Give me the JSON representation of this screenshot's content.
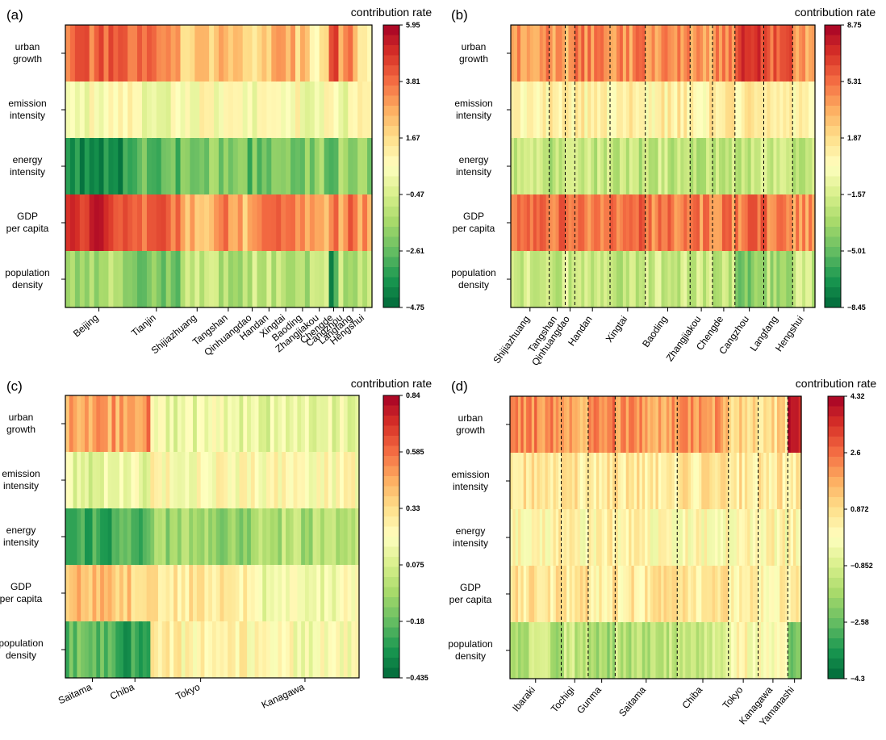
{
  "colorbar_title": "contribution rate",
  "row_labels": [
    [
      "urban",
      "growth"
    ],
    [
      "emission",
      "intensity"
    ],
    [
      "energy",
      "intensity"
    ],
    [
      "GDP",
      "per capita"
    ],
    [
      "population",
      "density"
    ]
  ],
  "chart_data": [
    {
      "panel": "(a)",
      "type": "heatmap",
      "title": "contribution rate",
      "rows": [
        "urban growth",
        "emission intensity",
        "energy intensity",
        "GDP per capita",
        "population density"
      ],
      "colorbar_ticks": [
        5.95,
        3.81,
        1.67,
        -0.47,
        -2.61,
        -4.75
      ],
      "vmin": -4.75,
      "vmax": 5.95,
      "groups": [
        {
          "name": "Beijing",
          "cols": 14,
          "values": [
            3.8,
            0.5,
            -3.8,
            4.8,
            -1.5
          ]
        },
        {
          "name": "Tianjin",
          "cols": 10,
          "values": [
            3.5,
            0.4,
            -2.8,
            3.8,
            -2.2
          ]
        },
        {
          "name": "Shijiazhuang",
          "cols": 7,
          "values": [
            2.2,
            0.6,
            -2.0,
            2.8,
            -1.0
          ]
        },
        {
          "name": "Tangshan",
          "cols": 6,
          "values": [
            2.4,
            0.5,
            -2.2,
            3.4,
            -1.2
          ]
        },
        {
          "name": "Qinhuangdao",
          "cols": 4,
          "values": [
            1.6,
            0.5,
            -2.6,
            2.6,
            -0.8
          ]
        },
        {
          "name": "Handan",
          "cols": 3,
          "values": [
            2.2,
            0.4,
            -2.3,
            3.2,
            -1.1
          ]
        },
        {
          "name": "Xingtai",
          "cols": 4,
          "values": [
            2.4,
            0.4,
            -2.2,
            3.4,
            -1.0
          ]
        },
        {
          "name": "Baoding",
          "cols": 3,
          "values": [
            2.1,
            0.5,
            -2.0,
            3.0,
            -1.2
          ]
        },
        {
          "name": "Zhangjiakou",
          "cols": 4,
          "values": [
            1.4,
            0.5,
            -2.0,
            2.4,
            -0.9
          ]
        },
        {
          "name": "Chengde",
          "cols": 2,
          "values": [
            4.5,
            0.4,
            -3.5,
            3.6,
            -3.6
          ]
        },
        {
          "name": "Cangzhou",
          "cols": 2,
          "values": [
            2.6,
            0.4,
            -1.6,
            3.0,
            -1.0
          ]
        },
        {
          "name": "Langfang",
          "cols": 2,
          "values": [
            3.2,
            0.4,
            -2.4,
            3.8,
            -1.4
          ]
        },
        {
          "name": "Hengshui",
          "cols": 3,
          "values": [
            1.5,
            0.5,
            -1.8,
            3.2,
            -0.8
          ]
        }
      ]
    },
    {
      "panel": "(b)",
      "type": "heatmap",
      "title": "contribution rate",
      "rows": [
        "urban growth",
        "emission intensity",
        "energy intensity",
        "GDP per capita",
        "population density"
      ],
      "colorbar_ticks": [
        8.75,
        5.31,
        1.87,
        -1.57,
        -5.01,
        -8.45
      ],
      "vmin": -8.45,
      "vmax": 8.75,
      "groups": [
        {
          "name": "Shijiazhuang",
          "cols": 12,
          "values": [
            4.5,
            0.9,
            -2.2,
            5.0,
            -2.0
          ]
        },
        {
          "name": "Tangshan",
          "cols": 5,
          "values": [
            4.2,
            0.8,
            -2.4,
            5.2,
            -2.3
          ]
        },
        {
          "name": "Qinhuangdao",
          "cols": 3,
          "values": [
            3.8,
            0.9,
            -2.2,
            4.8,
            -1.8
          ]
        },
        {
          "name": "Handan",
          "cols": 11,
          "values": [
            4.6,
            0.8,
            -2.3,
            5.0,
            -2.1
          ]
        },
        {
          "name": "Xingtai",
          "cols": 11,
          "values": [
            4.4,
            0.8,
            -2.5,
            5.1,
            -2.2
          ]
        },
        {
          "name": "Baoding",
          "cols": 14,
          "values": [
            4.2,
            0.9,
            -2.2,
            5.0,
            -2.0
          ]
        },
        {
          "name": "Zhangjiakou",
          "cols": 7,
          "values": [
            3.8,
            0.9,
            -2.3,
            4.6,
            -1.9
          ]
        },
        {
          "name": "Chengde",
          "cols": 7,
          "values": [
            4.2,
            0.9,
            -2.0,
            4.8,
            -2.1
          ]
        },
        {
          "name": "Cangzhou",
          "cols": 9,
          "values": [
            6.4,
            0.9,
            -2.4,
            5.0,
            -4.2
          ]
        },
        {
          "name": "Langfang",
          "cols": 9,
          "values": [
            5.3,
            0.9,
            -2.2,
            5.2,
            -2.8
          ]
        },
        {
          "name": "Hengshui",
          "cols": 7,
          "values": [
            3.9,
            0.9,
            -2.0,
            4.4,
            -2.1
          ]
        }
      ]
    },
    {
      "panel": "(c)",
      "type": "heatmap",
      "title": "contribution rate",
      "rows": [
        "urban growth",
        "emission intensity",
        "energy intensity",
        "GDP per capita",
        "population density"
      ],
      "colorbar_ticks": [
        0.84,
        0.585,
        0.33,
        0.075,
        -0.18,
        -0.435
      ],
      "vmin": -0.435,
      "vmax": 0.84,
      "groups": [
        {
          "name": "Saitama",
          "cols": 14,
          "values": [
            0.48,
            0.12,
            -0.25,
            0.42,
            -0.18
          ]
        },
        {
          "name": "Chiba",
          "cols": 8,
          "values": [
            0.52,
            0.14,
            -0.22,
            0.38,
            -0.26
          ]
        },
        {
          "name": "Tokyo",
          "cols": 26,
          "values": [
            0.15,
            0.21,
            -0.08,
            0.29,
            0.24
          ]
        },
        {
          "name": "Kanagawa",
          "cols": 28,
          "values": [
            0.12,
            0.21,
            -0.02,
            0.17,
            0.19
          ]
        }
      ]
    },
    {
      "panel": "(d)",
      "type": "heatmap",
      "title": "contribution rate",
      "rows": [
        "urban growth",
        "emission intensity",
        "energy intensity",
        "GDP per capita",
        "population density"
      ],
      "colorbar_ticks": [
        4.32,
        2.6,
        0.872,
        -0.852,
        -2.58,
        -4.3
      ],
      "vmin": -4.3,
      "vmax": 4.32,
      "groups": [
        {
          "name": "Ibaraki",
          "cols": 19,
          "values": [
            2.2,
            0.6,
            0.3,
            0.6,
            -1.4
          ]
        },
        {
          "name": "Tochigi",
          "cols": 10,
          "values": [
            1.8,
            0.6,
            0.2,
            0.6,
            -1.2
          ]
        },
        {
          "name": "Gunma",
          "cols": 10,
          "values": [
            2.4,
            0.6,
            0.3,
            0.5,
            -1.6
          ]
        },
        {
          "name": "Saitama",
          "cols": 23,
          "values": [
            2.0,
            0.6,
            0.2,
            0.5,
            -1.3
          ]
        },
        {
          "name": "Chiba",
          "cols": 19,
          "values": [
            1.9,
            0.6,
            0.2,
            0.5,
            -1.1
          ]
        },
        {
          "name": "Tokyo",
          "cols": 11,
          "values": [
            0.9,
            0.6,
            0.2,
            0.4,
            0.1
          ]
        },
        {
          "name": "Kanagawa",
          "cols": 11,
          "values": [
            0.9,
            0.6,
            0.2,
            0.4,
            0.2
          ]
        },
        {
          "name": "Yamanashi",
          "cols": 5,
          "values": [
            3.6,
            0.6,
            0.2,
            0.5,
            -2.4
          ]
        }
      ]
    }
  ]
}
